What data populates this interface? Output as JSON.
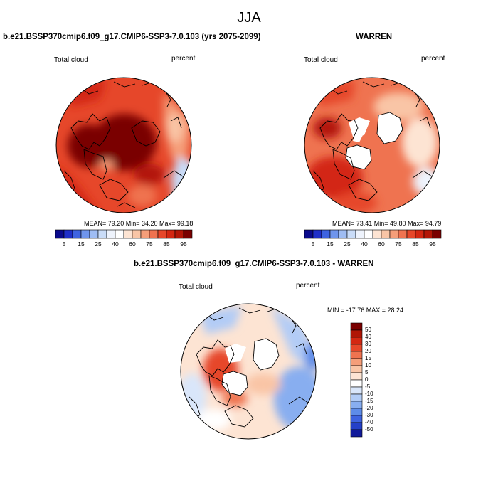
{
  "page_title": "JJA",
  "panels": [
    {
      "title": "b.e21.BSSP370cmip6.f09_g17.CMIP6-SSP3-7.0.103 (yrs 2075-2099)",
      "variable": "Total cloud",
      "units": "percent",
      "stats": "MEAN= 79.20  Min= 34.20  Max= 99.18"
    },
    {
      "title": "WARREN",
      "variable": "Total cloud",
      "units": "percent",
      "stats": "MEAN= 73.41  Min= 49.80  Max= 94.79"
    },
    {
      "title": "b.e21.BSSP370cmip6.f09_g17.CMIP6-SSP3-7.0.103 - WARREN",
      "variable": "Total cloud",
      "units": "percent",
      "stats": "MIN = -17.76 MAX =  28.24"
    }
  ],
  "abs_colorbar": {
    "labels": [
      "5",
      "15",
      "25",
      "40",
      "60",
      "75",
      "85",
      "95"
    ],
    "colors": [
      "#0a0a8c",
      "#1f2fc8",
      "#3e63e0",
      "#6f95ec",
      "#9fbdf3",
      "#c9dcf8",
      "#eef3fc",
      "#ffffff",
      "#fde4d3",
      "#f9c5a6",
      "#f59e79",
      "#ef7350",
      "#e6472a",
      "#d32712",
      "#b31607",
      "#7a0000"
    ]
  },
  "diff_colorbar": {
    "labels": [
      "50",
      "40",
      "30",
      "20",
      "15",
      "10",
      "5",
      "0",
      "-5",
      "-10",
      "-15",
      "-20",
      "-30",
      "-40",
      "-50"
    ],
    "colors": [
      "#7a0000",
      "#b01505",
      "#d32712",
      "#e6472a",
      "#ef7350",
      "#f59e79",
      "#f9c5a6",
      "#fde4d3",
      "#ffffff",
      "#d9e6fa",
      "#b2ccf6",
      "#88aef0",
      "#5e8ce8",
      "#3e63e0",
      "#2440c8",
      "#111a9a"
    ]
  }
}
